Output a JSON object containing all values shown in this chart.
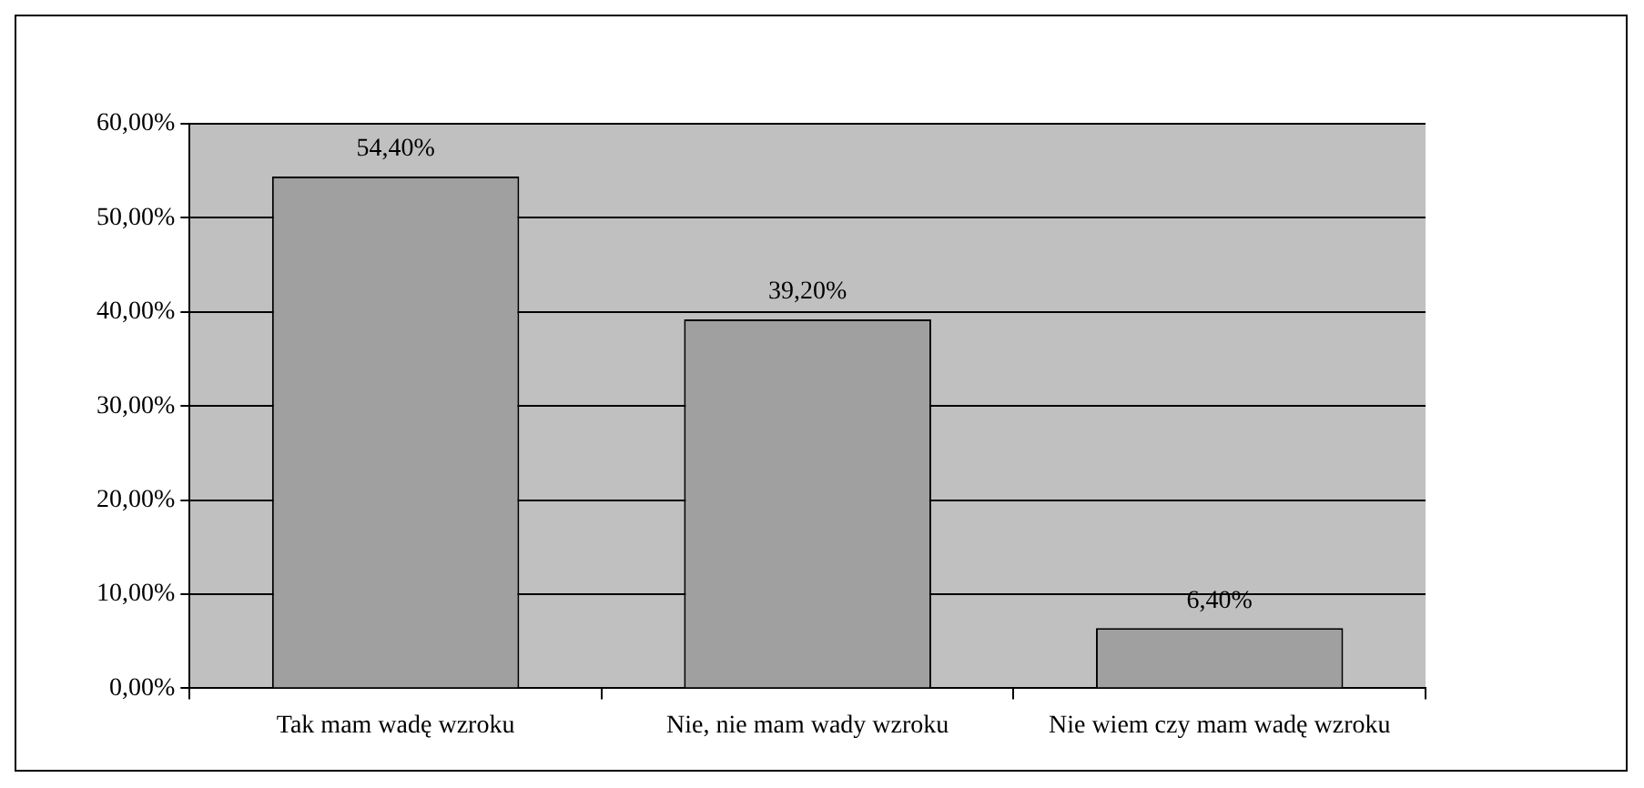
{
  "chart_data": {
    "type": "bar",
    "categories": [
      "Tak mam wadę wzroku",
      "Nie, nie mam wady wzroku",
      "Nie wiem czy mam wadę wzroku"
    ],
    "values": [
      54.4,
      39.2,
      6.4
    ],
    "color": "#a0a0a0",
    "value_labels": [
      "54,40%",
      "39,20%",
      "6,40%"
    ],
    "ylim": [
      0,
      60
    ],
    "yticks": [
      {
        "value": 0,
        "label": "0,00%"
      },
      {
        "value": 10,
        "label": "10,00%"
      },
      {
        "value": 20,
        "label": "20,00%"
      },
      {
        "value": 30,
        "label": "30,00%"
      },
      {
        "value": 40,
        "label": "40,00%"
      },
      {
        "value": 50,
        "label": "50,00%"
      },
      {
        "value": 60,
        "label": "60,00%"
      }
    ],
    "grid": "y",
    "legend": false
  }
}
